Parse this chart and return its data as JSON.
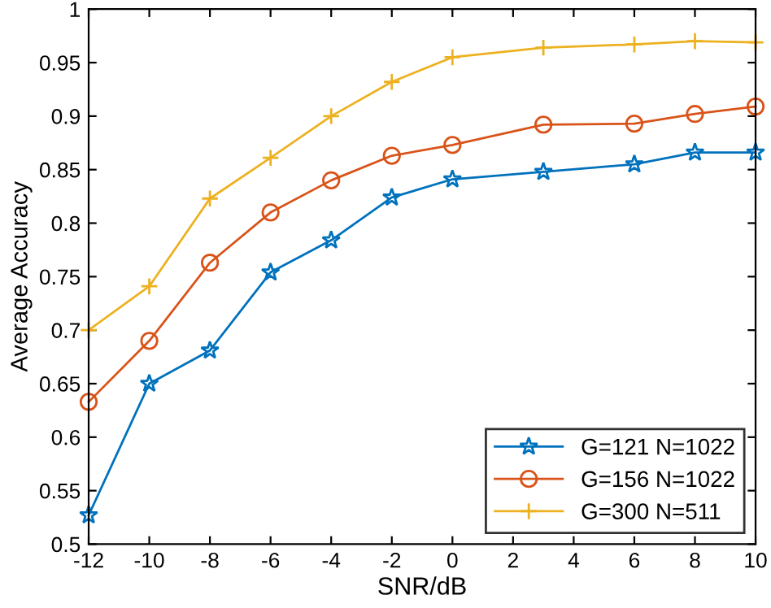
{
  "chart_data": {
    "type": "line",
    "xlabel": "SNR/dB",
    "ylabel": "Average Accuracy",
    "x": [
      -12,
      -10,
      -8,
      -6,
      -4,
      -2,
      0,
      3,
      6,
      8,
      10
    ],
    "series": [
      {
        "name": "G=121 N=1022",
        "color": "#0072bd",
        "marker": "star",
        "values": [
          0.527,
          0.65,
          0.681,
          0.754,
          0.784,
          0.824,
          0.841,
          0.848,
          0.855,
          0.866,
          0.866
        ]
      },
      {
        "name": "G=156 N=1022",
        "color": "#d95319",
        "marker": "circle",
        "values": [
          0.633,
          0.69,
          0.763,
          0.81,
          0.84,
          0.863,
          0.873,
          0.892,
          0.893,
          0.902,
          0.909
        ]
      },
      {
        "name": "G=300 N=511",
        "color": "#edb120",
        "marker": "cross",
        "values": [
          0.7,
          0.741,
          0.823,
          0.861,
          0.9,
          0.932,
          0.955,
          0.964,
          0.967,
          0.97,
          0.969
        ]
      }
    ],
    "xlim": [
      -12,
      10
    ],
    "xticks": [
      -12,
      -10,
      -8,
      -6,
      -4,
      -2,
      0,
      2,
      4,
      6,
      8,
      10
    ],
    "ylim": [
      0.5,
      1
    ],
    "yticks": [
      0.5,
      0.55,
      0.6,
      0.65,
      0.7,
      0.75,
      0.8,
      0.85,
      0.9,
      0.95,
      1
    ],
    "grid": false,
    "legend": "bottom right",
    "line_style": "solid"
  }
}
